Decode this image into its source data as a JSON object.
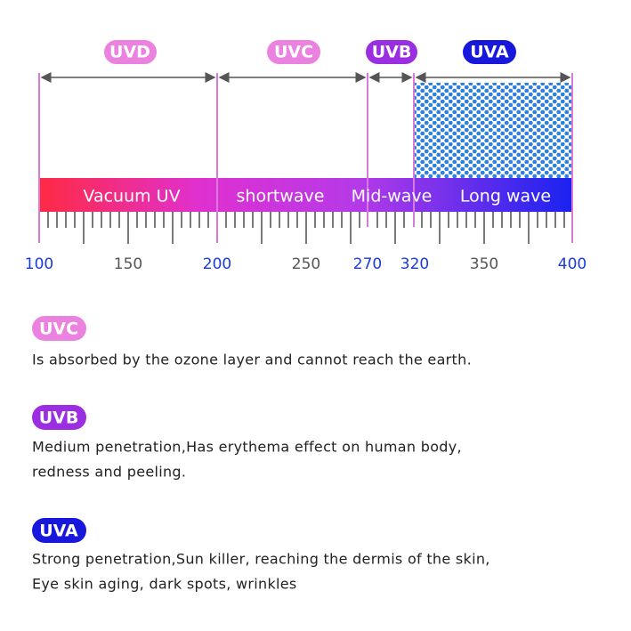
{
  "diagram": {
    "bands": [
      {
        "label": "UVD"
      },
      {
        "label": "UVC"
      },
      {
        "label": "UVB"
      },
      {
        "label": "UVA"
      }
    ],
    "regions": [
      "Vacuum UV",
      "shortwave",
      "Mid-wave",
      "Long wave"
    ],
    "scale": [
      "100",
      "150",
      "200",
      "250",
      "270",
      "320",
      "350",
      "400"
    ]
  },
  "notes": [
    {
      "tag": "UVC",
      "lines": [
        "Is absorbed by the ozone layer and cannot reach the earth."
      ]
    },
    {
      "tag": "UVB",
      "lines": [
        "Medium penetration,Has erythema effect on human body,",
        "redness and peeling."
      ]
    },
    {
      "tag": "UVA",
      "lines": [
        "Strong penetration,Sun killer, reaching the dermis of the skin,",
        "Eye skin aging, dark spots, wrinkles"
      ]
    }
  ]
}
